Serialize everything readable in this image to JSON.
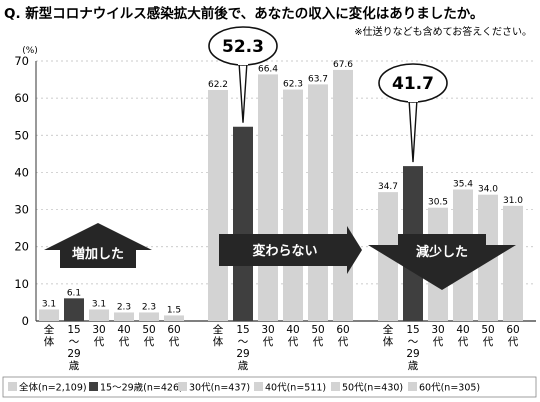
{
  "title": "Q. 新型コロナウイルス感染拡大前後で、あなたの収入に変化はありましたか。",
  "note": "※仕送りなども含めてお答えください。",
  "colors": {
    "light": "#d3d3d3",
    "dark": "#3f3f3f",
    "axis": "#333333",
    "grid": "#bbbbbb",
    "callout_fill": "#ffffff",
    "arrow_fill": "#262626"
  },
  "chart_data": {
    "type": "bar",
    "y_unit": "(%)",
    "ylim": [
      0,
      70
    ],
    "yticks": [
      0,
      10,
      20,
      30,
      40,
      50,
      60,
      70
    ],
    "grid": false,
    "legend_position": "bottom",
    "group_arrow_icons": [
      "arrow-up-icon",
      "arrow-right-icon",
      "arrow-down-icon"
    ],
    "groups": [
      {
        "label": "増加した",
        "arrow": "up",
        "values": [
          3.1,
          6.1,
          3.1,
          2.3,
          2.3,
          1.5
        ],
        "value_labels": [
          "3.1",
          "6.1",
          "3.1",
          "2.3",
          "2.3",
          "1.5"
        ],
        "callout": ""
      },
      {
        "label": "変わらない",
        "arrow": "right",
        "values": [
          62.2,
          52.3,
          66.4,
          62.3,
          63.7,
          67.6
        ],
        "value_labels": [
          "62.2",
          "",
          "66.4",
          "62.3",
          "63.7",
          "67.6"
        ],
        "callout": "52.3"
      },
      {
        "label": "減少した",
        "arrow": "down",
        "values": [
          34.7,
          41.7,
          30.5,
          35.4,
          34.0,
          31.0
        ],
        "value_labels": [
          "34.7",
          "",
          "30.5",
          "35.4",
          "34.0",
          "31.0"
        ],
        "callout": "41.7"
      }
    ],
    "categories": [
      {
        "label_lines": [
          "全",
          "体"
        ]
      },
      {
        "label_lines": [
          "15",
          "〜",
          "29",
          "歳"
        ]
      },
      {
        "label_lines": [
          "30",
          "代"
        ]
      },
      {
        "label_lines": [
          "40",
          "代"
        ]
      },
      {
        "label_lines": [
          "50",
          "代"
        ]
      },
      {
        "label_lines": [
          "60",
          "代"
        ]
      }
    ],
    "series": [
      {
        "name": "全体(n=2,109)",
        "color": "light"
      },
      {
        "name": "15〜29歳(n=426)",
        "color": "dark"
      },
      {
        "name": "30代(n=437)",
        "color": "light"
      },
      {
        "name": "40代(n=511)",
        "color": "light"
      },
      {
        "name": "50代(n=430)",
        "color": "light"
      },
      {
        "name": "60代(n=305)",
        "color": "light"
      }
    ]
  }
}
